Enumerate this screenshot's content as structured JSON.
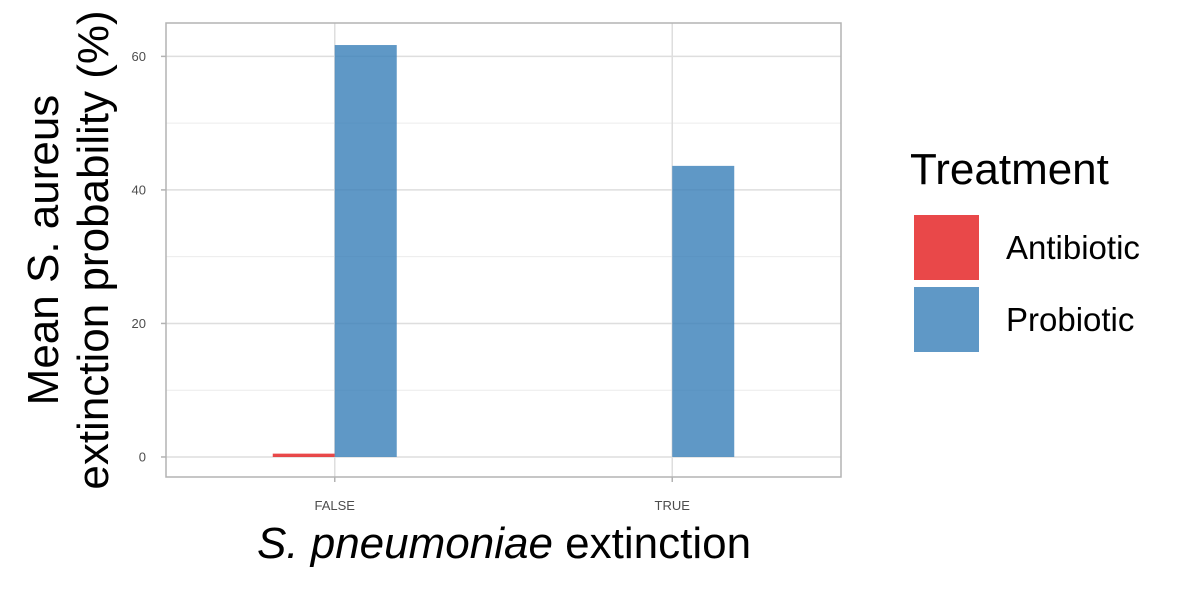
{
  "chart_data": {
    "type": "bar",
    "categories": [
      "FALSE",
      "TRUE"
    ],
    "series": [
      {
        "name": "Antibiotic",
        "color": "#E41A1C",
        "values": [
          0.5,
          0
        ]
      },
      {
        "name": "Probiotic",
        "color": "#377EB8",
        "values": [
          61.7,
          43.6
        ]
      }
    ],
    "xlabel_italic": "S. pneumoniae",
    "xlabel_rest": " extinction",
    "ylabel_line1": "Mean S. aureus",
    "ylabel_line2": "extinction probability (%)",
    "yticks": [
      0,
      20,
      40,
      60
    ],
    "ylim": [
      -3,
      65
    ],
    "grid": true,
    "legend": {
      "title": "Treatment",
      "position": "right"
    }
  }
}
